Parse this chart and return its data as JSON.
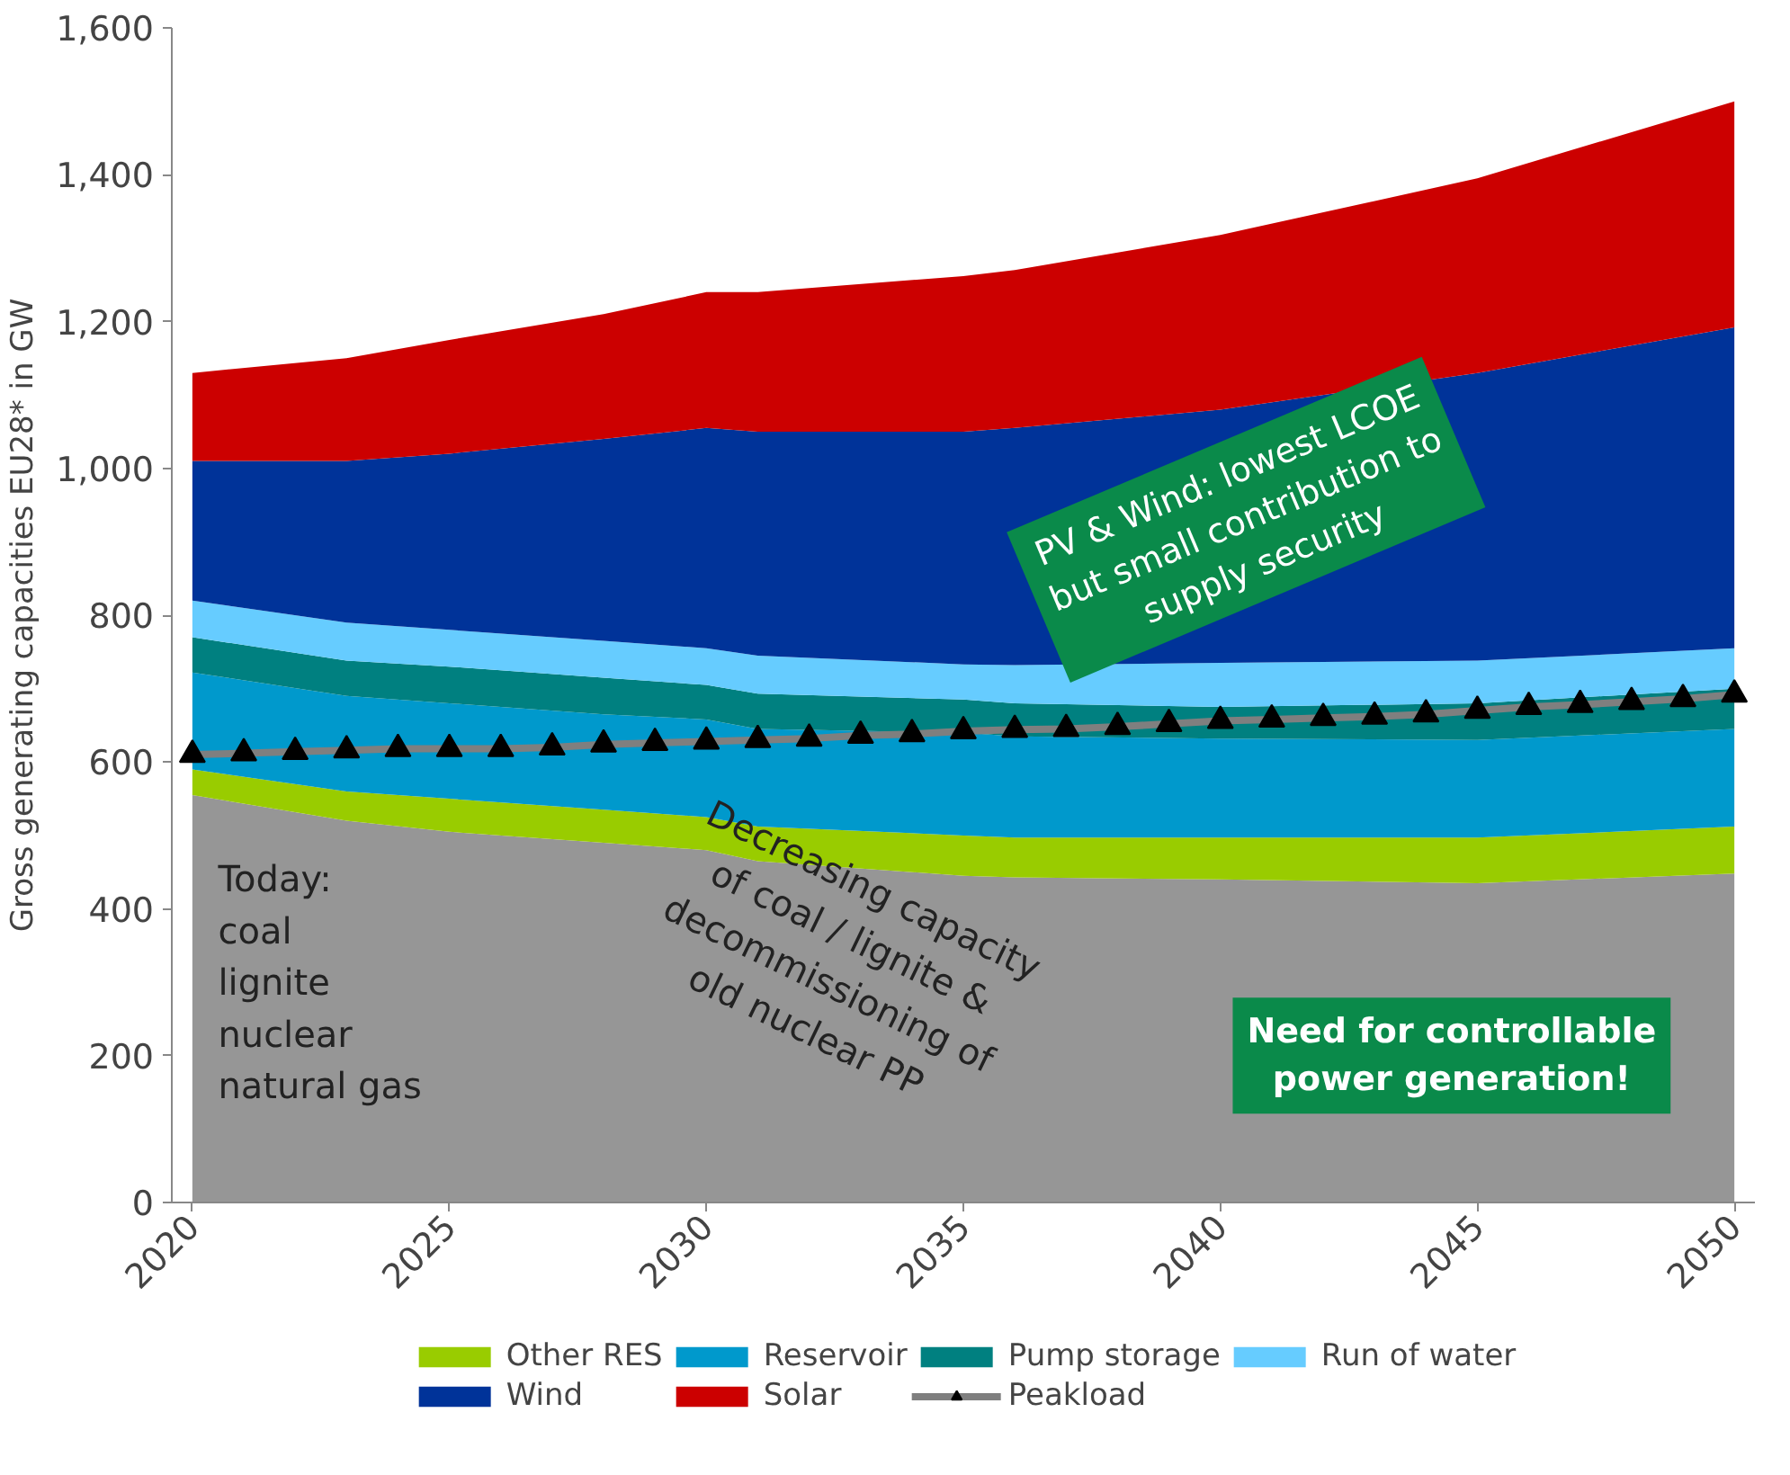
{
  "chart_data": {
    "type": "area",
    "stacked": true,
    "ylabel": "Gross generating capacities EU28* in GW",
    "x": [
      2020,
      2023,
      2025,
      2028,
      2030,
      2031,
      2035,
      2036,
      2040,
      2045,
      2050
    ],
    "xlim": [
      2019.6,
      2050.4
    ],
    "xticks": [
      2020,
      2025,
      2030,
      2035,
      2040,
      2045,
      2050
    ],
    "ylim": [
      0,
      1600
    ],
    "yticks": [
      0,
      200,
      400,
      600,
      800,
      {
        "value": 1000,
        "label": "1,000"
      },
      {
        "value": 1200,
        "label": "1,200"
      },
      {
        "value": 1400,
        "label": "1,400"
      },
      {
        "value": 1600,
        "label": "1,600"
      }
    ],
    "grid": false,
    "legend": "bottom",
    "series": [
      {
        "color": "#969696",
        "values": [
          555,
          520,
          505,
          490,
          480,
          465,
          445,
          443,
          440,
          435,
          448
        ]
      },
      {
        "name": "Other RES",
        "color": "#99cc00",
        "values": [
          35,
          40,
          45,
          45,
          45,
          47,
          55,
          54,
          57,
          62,
          64
        ]
      },
      {
        "name": "Reservoir",
        "color": "#0099cc",
        "values": [
          132,
          130,
          130,
          130,
          133,
          133,
          140,
          138,
          135,
          133,
          133
        ]
      },
      {
        "name": "Pump storage",
        "color": "#008080",
        "values": [
          48,
          48,
          50,
          50,
          47,
          48,
          45,
          45,
          43,
          50,
          55
        ]
      },
      {
        "name": "Run of water",
        "color": "#66ccff",
        "values": [
          50,
          52,
          50,
          50,
          50,
          52,
          48,
          52,
          60,
          58,
          55
        ]
      },
      {
        "name": "Wind",
        "color": "#003399",
        "values": [
          190,
          220,
          240,
          275,
          300,
          305,
          317,
          323,
          345,
          392,
          437
        ]
      },
      {
        "name": "Solar",
        "color": "#cc0000",
        "values": [
          120,
          140,
          155,
          170,
          185,
          190,
          212,
          215,
          238,
          265,
          308
        ]
      },
      {
        "name": "Peakload",
        "type": "line",
        "color": "#7f7f7f",
        "marker": "triangle",
        "x": [
          2020,
          2021,
          2022,
          2023,
          2024,
          2025,
          2026,
          2027,
          2028,
          2029,
          2030,
          2031,
          2032,
          2033,
          2034,
          2035,
          2036,
          2037,
          2038,
          2039,
          2040,
          2041,
          2042,
          2043,
          2044,
          2045,
          2046,
          2047,
          2048,
          2049,
          2050
        ],
        "values": [
          610,
          612,
          614,
          616,
          618,
          618,
          618,
          620,
          624,
          626,
          628,
          630,
          632,
          636,
          638,
          642,
          644,
          645,
          648,
          652,
          656,
          658,
          660,
          662,
          665,
          670,
          675,
          678,
          682,
          686,
          692
        ]
      }
    ],
    "annotations": [
      "Today:\ncoal\nlignite\nnuclear\nnatural gas",
      "Decreasing capacity\nof coal / lignite &\ndecommissioning of\nold nuclear PP",
      "Need for controllable\npower generation!",
      "PV & Wind: lowest LCOE\nbut small contribution to\nsupply security"
    ]
  }
}
